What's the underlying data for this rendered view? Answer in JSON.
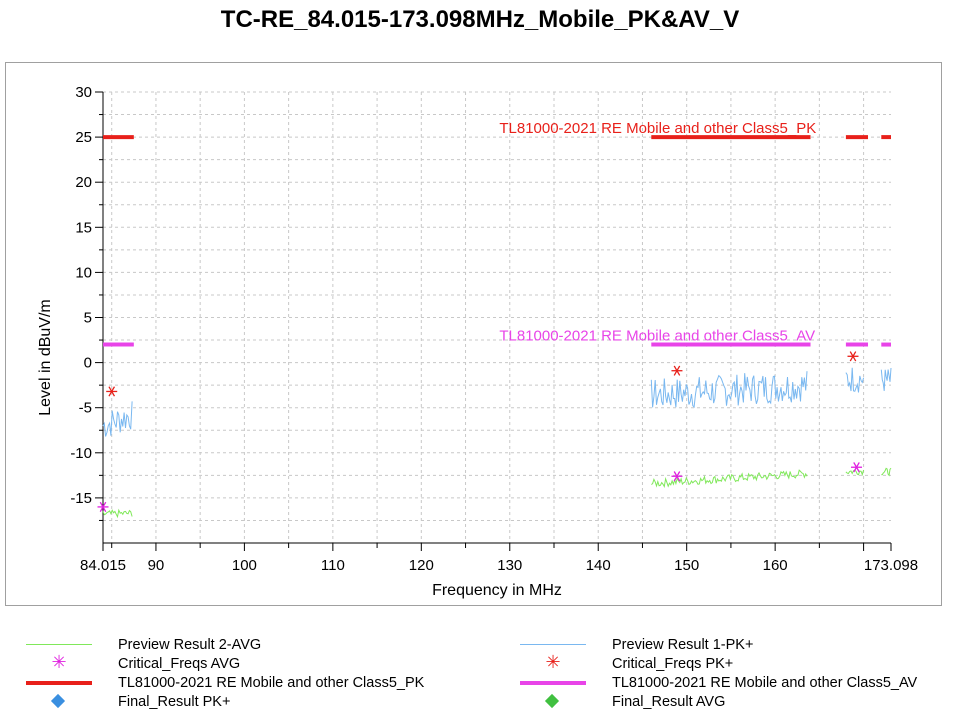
{
  "title": "TC-RE_84.015-173.098MHz_Mobile_PK&AV_V",
  "chart_data": {
    "type": "line",
    "title": "TC-RE_84.015-173.098MHz_Mobile_PK&AV_V",
    "xlabel": "Frequency in MHz",
    "ylabel": "Level in dBuV/m",
    "xlim": [
      84.015,
      173.098
    ],
    "ylim": [
      -20,
      30
    ],
    "xticks": [
      {
        "value": 84.015,
        "label": "84.015"
      },
      {
        "value": 90,
        "label": "90"
      },
      {
        "value": 100,
        "label": "100"
      },
      {
        "value": 110,
        "label": "110"
      },
      {
        "value": 120,
        "label": "120"
      },
      {
        "value": 130,
        "label": "130"
      },
      {
        "value": 140,
        "label": "140"
      },
      {
        "value": 150,
        "label": "150"
      },
      {
        "value": 160,
        "label": "160"
      },
      {
        "value": 173.098,
        "label": "173.098"
      }
    ],
    "yticks": [
      {
        "value": 30,
        "label": "30"
      },
      {
        "value": 25,
        "label": "25"
      },
      {
        "value": 20,
        "label": "20"
      },
      {
        "value": 15,
        "label": "15"
      },
      {
        "value": 10,
        "label": "10"
      },
      {
        "value": 5,
        "label": "5"
      },
      {
        "value": 0,
        "label": "0"
      },
      {
        "value": -5,
        "label": "-5"
      },
      {
        "value": -10,
        "label": "-10"
      },
      {
        "value": -15,
        "label": "-15"
      }
    ],
    "grid": true,
    "limits": [
      {
        "name": "TL81000-2021 RE Mobile and other Class5_PK",
        "color": "#e8201a",
        "value": 25,
        "segments": [
          [
            84.015,
            87.5
          ],
          [
            146.0,
            164.0
          ],
          [
            168.0,
            170.5
          ],
          [
            172.0,
            173.098
          ]
        ],
        "label": "TL81000-2021 RE Mobile and other Class5_PK",
        "label_x": 129.5
      },
      {
        "name": "TL81000-2021 RE Mobile and other Class5_AV",
        "color": "#e844e8",
        "value": 2,
        "segments": [
          [
            84.015,
            87.5
          ],
          [
            146.0,
            164.0
          ],
          [
            168.0,
            170.5
          ],
          [
            172.0,
            173.098
          ]
        ],
        "label": "TL81000-2021 RE Mobile and other Class5_AV",
        "label_x": 129.5
      }
    ],
    "series": [
      {
        "name": "Preview Result 1-PK+",
        "color": "#7ab8f0",
        "type": "noise",
        "segments": [
          {
            "x": [
              84.015,
              87.3
            ],
            "y": [
              -7.0,
              -5.8
            ],
            "amp": 1.7
          },
          {
            "x": [
              146.0,
              163.6
            ],
            "y": [
              -3.6,
              -2.5
            ],
            "amp": 1.8
          },
          {
            "x": [
              168.0,
              170.0
            ],
            "y": [
              -1.8,
              -1.8
            ],
            "amp": 1.6
          },
          {
            "x": [
              172.0,
              173.098
            ],
            "y": [
              -2.0,
              -2.0
            ],
            "amp": 1.5
          }
        ]
      },
      {
        "name": "Preview Result 2-AVG",
        "color": "#80e85a",
        "type": "noise",
        "segments": [
          {
            "x": [
              84.015,
              87.3
            ],
            "y": [
              -16.8,
              -16.7
            ],
            "amp": 0.4
          },
          {
            "x": [
              146.0,
              163.6
            ],
            "y": [
              -13.4,
              -12.3
            ],
            "amp": 0.45
          },
          {
            "x": [
              168.0,
              170.0
            ],
            "y": [
              -12.1,
              -12.0
            ],
            "amp": 0.4
          },
          {
            "x": [
              172.0,
              173.098
            ],
            "y": [
              -12.1,
              -12.1
            ],
            "amp": 0.4
          }
        ]
      },
      {
        "name": "Critical_Freqs PK+",
        "color": "#e8201a",
        "type": "star",
        "points": [
          [
            85.0,
            -3.2
          ],
          [
            148.9,
            -0.9
          ],
          [
            168.8,
            0.7
          ]
        ]
      },
      {
        "name": "Critical_Freqs AVG",
        "color": "#e020e0",
        "type": "star",
        "points": [
          [
            84.015,
            -16.0
          ],
          [
            148.9,
            -12.6
          ],
          [
            169.2,
            -11.6
          ]
        ]
      }
    ]
  },
  "legend": {
    "items": [
      {
        "label": "Preview Result 2-AVG",
        "symbol": "line",
        "color": "#80e85a"
      },
      {
        "label": "Preview Result 1-PK+",
        "symbol": "line",
        "color": "#7ab8f0"
      },
      {
        "label": "Critical_Freqs AVG",
        "symbol": "star",
        "color": "#e020e0"
      },
      {
        "label": "Critical_Freqs PK+",
        "symbol": "star",
        "color": "#e8201a"
      },
      {
        "label": "TL81000-2021 RE Mobile and other Class5_PK",
        "symbol": "thickline",
        "color": "#e8201a"
      },
      {
        "label": "TL81000-2021 RE Mobile and other Class5_AV",
        "symbol": "thickline",
        "color": "#e844e8"
      },
      {
        "label": "Final_Result PK+",
        "symbol": "diamond",
        "color": "#3a8fe0"
      },
      {
        "label": "Final_Result AVG",
        "symbol": "diamond",
        "color": "#40c040"
      }
    ]
  }
}
